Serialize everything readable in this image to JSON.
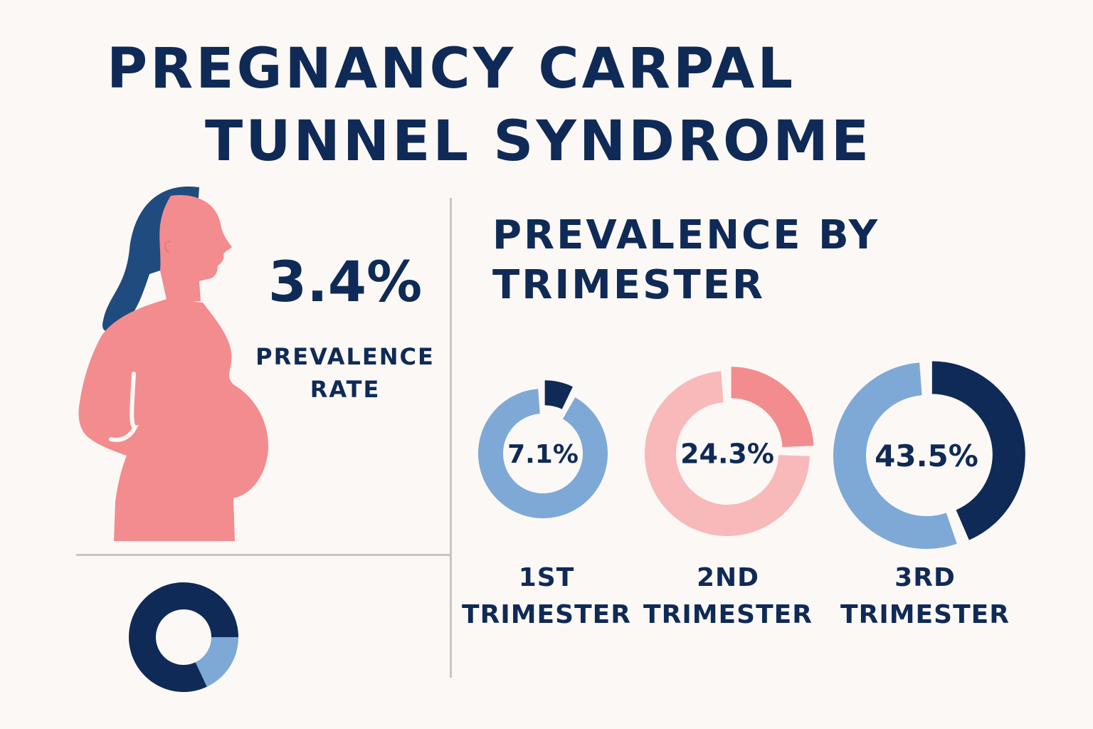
{
  "title": {
    "line1": "PREGNANCY CARPAL",
    "line2": "TUNNEL SYNDROME"
  },
  "overall": {
    "value_text": "3.4%",
    "label_line1": "PREVALENCE",
    "label_line2": "RATE"
  },
  "section": {
    "heading_line1": "PREVALENCE BY",
    "heading_line2": "TRIMESTER"
  },
  "colors": {
    "navy": "#0f2a56",
    "light_blue": "#7ea9d6",
    "pink": "#f28c8e",
    "light_pink": "#f8b9ba",
    "skin": "#f28c8e",
    "hair": "#1f4b7e"
  },
  "chart_data": [
    {
      "type": "pie",
      "title": "",
      "slices": [
        {
          "label": "1ST TRIMESTER",
          "value": 7.1,
          "value_text": "7.1%",
          "color": "#0f2a56",
          "rest_color": "#7ea9d6"
        },
        {
          "label": "2ND TRIMESTER",
          "value": 24.3,
          "value_text": "24.3%",
          "color": "#f28c8e",
          "rest_color": "#f8b9ba"
        },
        {
          "label": "3RD TRIMESTER",
          "value": 43.5,
          "value_text": "43.5%",
          "color": "#0f2a56",
          "rest_color": "#7ea9d6"
        }
      ],
      "label_words": [
        [
          "1ST",
          "TRIMESTER"
        ],
        [
          "2ND",
          "TRIMESTER"
        ],
        [
          "3RD",
          "TRIMESTER"
        ]
      ]
    },
    {
      "type": "pie",
      "title": "",
      "slices": [
        {
          "label": "",
          "value": 25,
          "color": "#0f2a56"
        },
        {
          "label": "",
          "value": 18,
          "color": "#7ea9d6"
        },
        {
          "label": "",
          "value": 57,
          "color": "#0f2a56"
        }
      ]
    }
  ]
}
